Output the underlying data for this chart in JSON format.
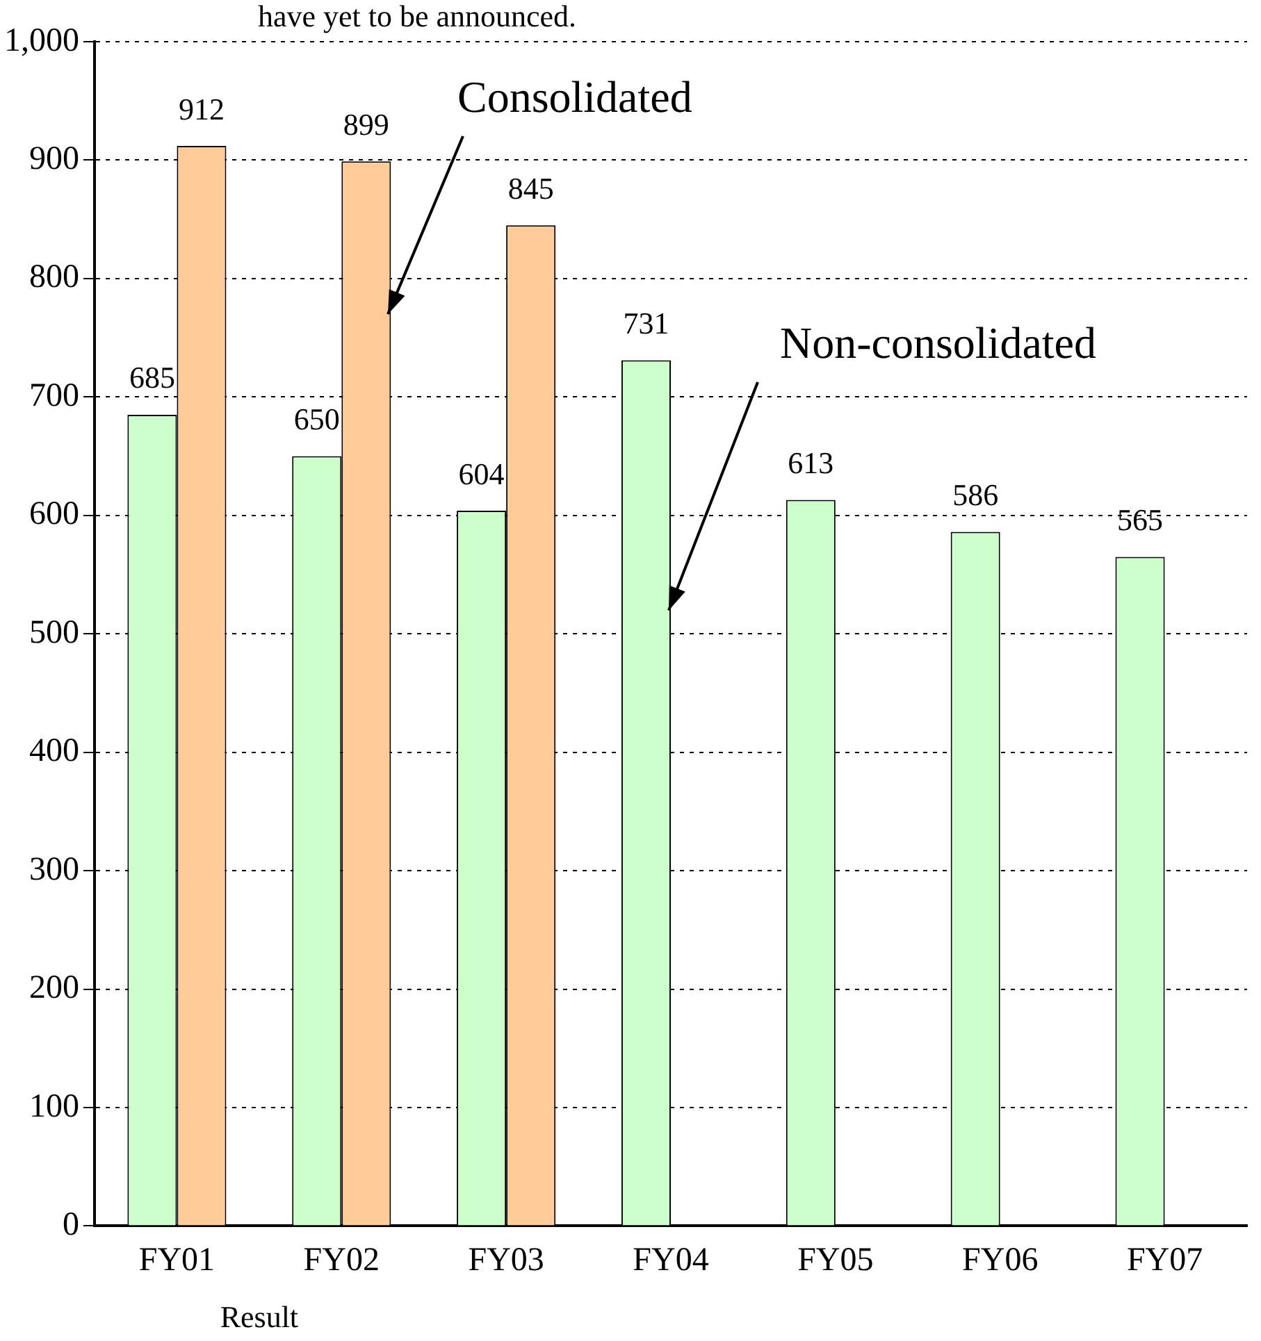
{
  "chart_data": {
    "type": "bar",
    "categories": [
      "FY01",
      "FY02",
      "FY03",
      "FY04",
      "FY05",
      "FY06",
      "FY07"
    ],
    "series": [
      {
        "name": "Non-consolidated",
        "color": "#ccffcc",
        "values": [
          685,
          650,
          604,
          731,
          613,
          586,
          565
        ]
      },
      {
        "name": "Consolidated",
        "color": "#ffcc99",
        "values": [
          912,
          899,
          845,
          null,
          null,
          null,
          null
        ]
      }
    ],
    "ylim": [
      0,
      1000
    ],
    "yticks": [
      0,
      100,
      200,
      300,
      400,
      500,
      600,
      700,
      800,
      900,
      {
        "value": 1000,
        "label": "1,000"
      }
    ],
    "grid": "y",
    "line_style": "dotted",
    "data_labels": true,
    "legend": false,
    "annotations": [
      "have yet to be announced.",
      "Result"
    ]
  }
}
